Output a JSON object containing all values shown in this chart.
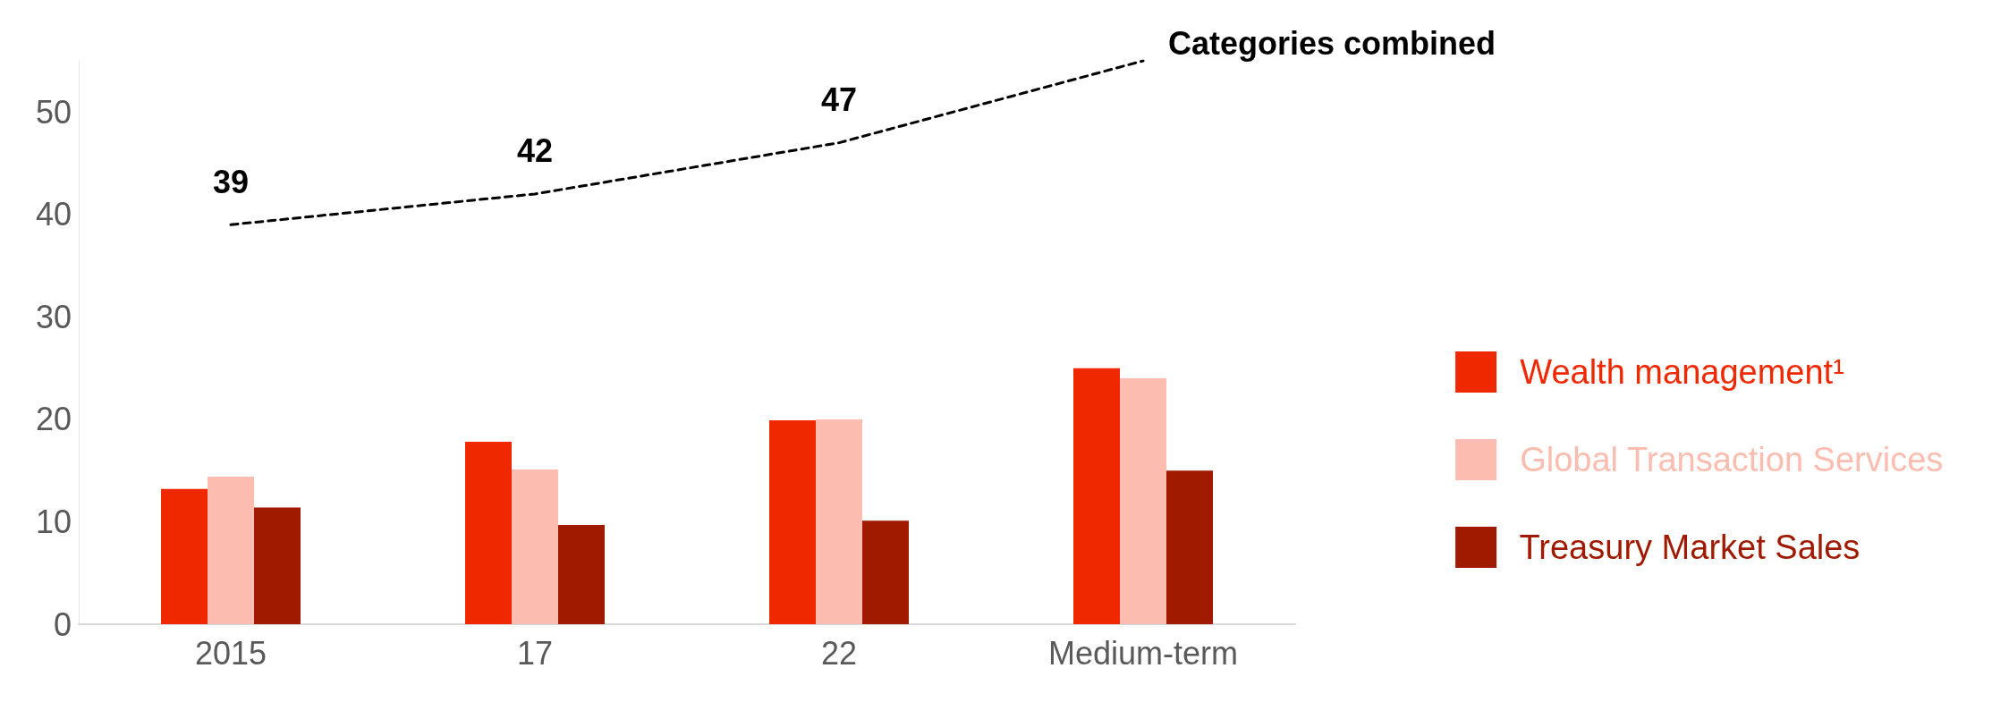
{
  "chart_data": {
    "type": "bar",
    "categories": [
      "2015",
      "17",
      "22",
      "Medium-term"
    ],
    "series": [
      {
        "name": "Wealth management¹",
        "color": "#f02800",
        "values": [
          13.2,
          17.8,
          19.9,
          25
        ]
      },
      {
        "name": "Global Transaction Services",
        "color": "#fcbdb0",
        "values": [
          14.4,
          15.1,
          20,
          24
        ]
      },
      {
        "name": "Treasury Market Sales",
        "color": "#a01a00",
        "values": [
          11.4,
          9.7,
          10.1,
          15
        ]
      },
      {
        "name": "Categories combined",
        "type": "line",
        "color": "#000000",
        "line_style": "dashed",
        "values": [
          39,
          42,
          47,
          55
        ],
        "value_labels": [
          "39",
          "42",
          "47",
          null
        ]
      }
    ],
    "ylim": [
      0,
      55
    ],
    "yticks": [
      0,
      10,
      20,
      30,
      40,
      50
    ],
    "grid": false,
    "legend": "right",
    "marker": "none"
  }
}
